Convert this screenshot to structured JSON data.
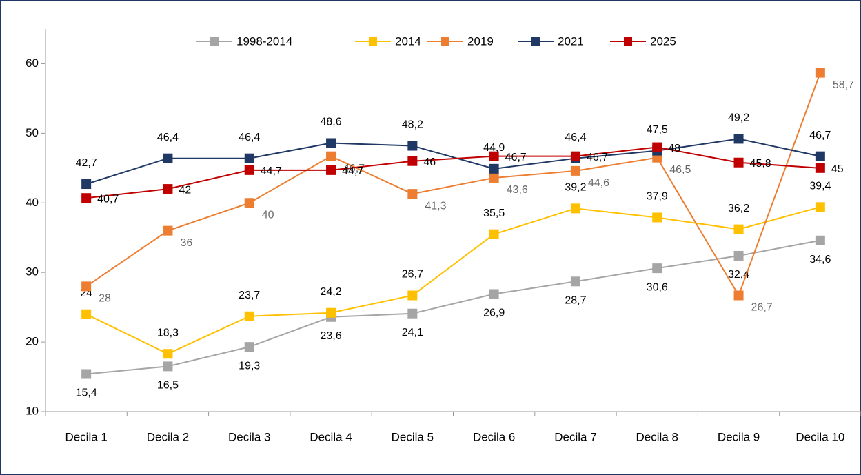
{
  "chart_data": {
    "type": "line",
    "categories": [
      "Decila 1",
      "Decila 2",
      "Decila 3",
      "Decila 4",
      "Decila 5",
      "Decila 6",
      "Decila 7",
      "Decila 8",
      "Decila 9",
      "Decila 10"
    ],
    "series": [
      {
        "name": "1998-2014",
        "color": "#a5a5a5",
        "values": [
          15.4,
          16.5,
          19.3,
          23.6,
          24.1,
          26.9,
          28.7,
          30.6,
          32.4,
          34.6
        ],
        "value_labels": [
          "15,4",
          "16,5",
          "19,3",
          "23,6",
          "24,1",
          "26,9",
          "28,7",
          "30,6",
          "32,4",
          "34,6"
        ]
      },
      {
        "name": "2014",
        "color": "#ffc000",
        "values": [
          24,
          18.3,
          23.7,
          24.2,
          26.7,
          35.5,
          39.2,
          37.9,
          36.2,
          39.4
        ],
        "value_labels": [
          "24",
          "18,3",
          "23,7",
          "24,2",
          "26,7",
          "35,5",
          "39,2",
          "37,9",
          "36,2",
          "39,4"
        ]
      },
      {
        "name": "2019",
        "color": "#ed7d31",
        "values": [
          28,
          36,
          40,
          46.7,
          41.3,
          43.6,
          44.6,
          46.5,
          26.7,
          58.7
        ],
        "value_labels": [
          "28",
          "36",
          "40",
          "46,7",
          "41,3",
          "43,6",
          "44,6",
          "46,5",
          "26,7",
          "58,7"
        ]
      },
      {
        "name": "2021",
        "color": "#1f3864",
        "values": [
          42.7,
          46.4,
          46.4,
          48.6,
          48.2,
          44.9,
          46.4,
          47.5,
          49.2,
          46.7
        ],
        "value_labels": [
          "42,7",
          "46,4",
          "46,4",
          "48,6",
          "48,2",
          "44,9",
          "46,4",
          "47,5",
          "49,2",
          "46,7"
        ]
      },
      {
        "name": "2025",
        "color": "#c00000",
        "values": [
          40.7,
          42,
          44.7,
          44.7,
          46,
          46.7,
          46.7,
          48,
          45.8,
          45
        ],
        "value_labels": [
          "40,7",
          "42",
          "44,7",
          "44,7",
          "46",
          "46,7",
          "46,7",
          "48",
          "45,8",
          "45"
        ]
      }
    ],
    "ylim": [
      10,
      65
    ],
    "yticks": [
      10,
      20,
      30,
      40,
      50,
      60
    ],
    "grid": false,
    "legend": "top"
  }
}
